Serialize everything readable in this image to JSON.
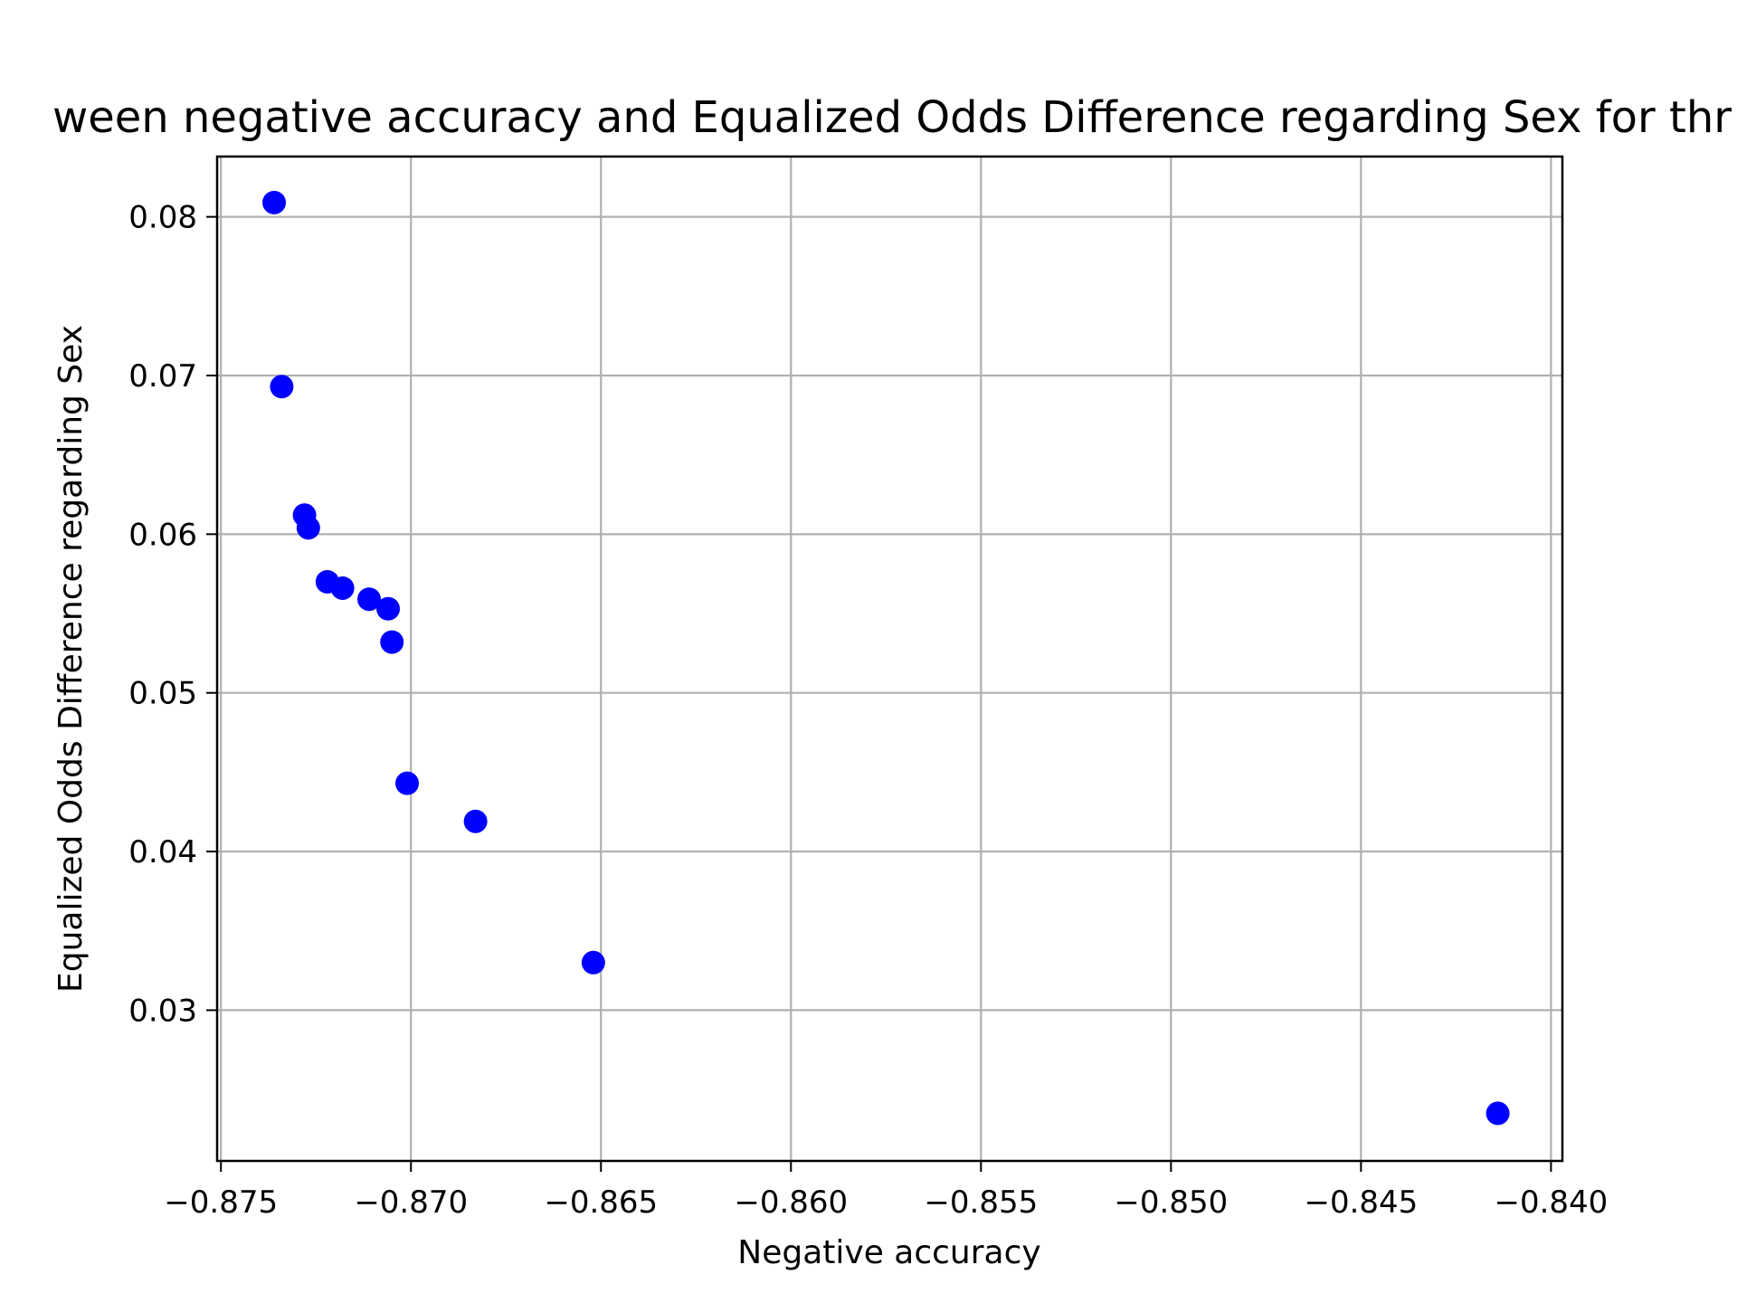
{
  "chart_data": {
    "type": "scatter",
    "title": "ween negative accuracy and Equalized Odds Difference regarding Sex for thr",
    "xlabel": "Negative accuracy",
    "ylabel": "Equalized Odds Difference regarding Sex",
    "xlim": [
      -0.8751,
      -0.8397
    ],
    "ylim": [
      0.0205,
      0.0838
    ],
    "xticks": [
      -0.875,
      -0.87,
      -0.865,
      -0.86,
      -0.855,
      -0.85,
      -0.845,
      -0.84
    ],
    "xtick_labels": [
      "−0.875",
      "−0.870",
      "−0.865",
      "−0.860",
      "−0.855",
      "−0.850",
      "−0.845",
      "−0.840"
    ],
    "yticks": [
      0.03,
      0.04,
      0.05,
      0.06,
      0.07,
      0.08
    ],
    "ytick_labels": [
      "0.03",
      "0.04",
      "0.05",
      "0.06",
      "0.07",
      "0.08"
    ],
    "grid": true,
    "marker_color": "#0000ff",
    "points": [
      {
        "x": -0.8736,
        "y": 0.0809
      },
      {
        "x": -0.8734,
        "y": 0.0693
      },
      {
        "x": -0.8728,
        "y": 0.0612
      },
      {
        "x": -0.8727,
        "y": 0.0604
      },
      {
        "x": -0.8722,
        "y": 0.057
      },
      {
        "x": -0.8718,
        "y": 0.0566
      },
      {
        "x": -0.8711,
        "y": 0.0559
      },
      {
        "x": -0.8706,
        "y": 0.0553
      },
      {
        "x": -0.8705,
        "y": 0.0532
      },
      {
        "x": -0.8701,
        "y": 0.0443
      },
      {
        "x": -0.8683,
        "y": 0.0419
      },
      {
        "x": -0.8652,
        "y": 0.033
      },
      {
        "x": -0.8414,
        "y": 0.0235
      }
    ]
  }
}
